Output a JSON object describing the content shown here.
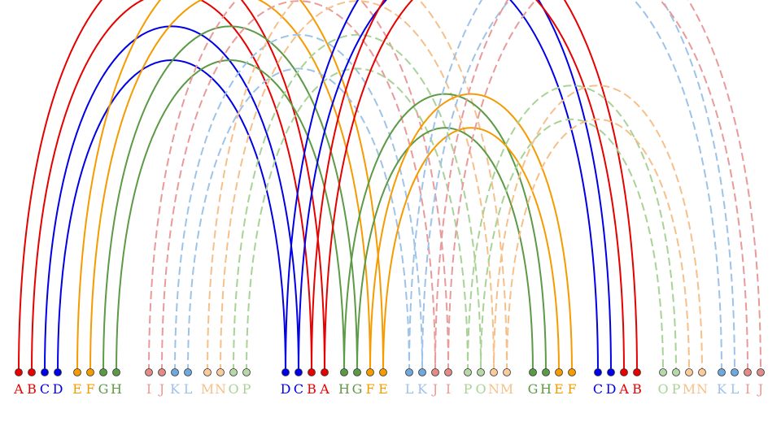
{
  "colors": {
    "red": "#e60000",
    "blue": "#0000e6",
    "orange": "#f59b00",
    "green": "#5c9a46",
    "pink": "#e99a9a",
    "lightblue": "#9ec3e8",
    "peach": "#f6c08a",
    "lightgreen": "#a9d396",
    "node_pink": "#e08b8b",
    "node_lightblue": "#6fa8dc",
    "node_peach": "#f9cb9c",
    "node_lightgreen": "#b6d7a8"
  },
  "nodes": [
    {
      "label": "A",
      "color": "red"
    },
    {
      "label": "B",
      "color": "red"
    },
    {
      "label": "C",
      "color": "blue"
    },
    {
      "label": "D",
      "color": "blue"
    },
    {
      "label": "E",
      "color": "orange"
    },
    {
      "label": "F",
      "color": "orange"
    },
    {
      "label": "G",
      "color": "green"
    },
    {
      "label": "H",
      "color": "green"
    },
    {
      "label": "I",
      "color": "pink"
    },
    {
      "label": "J",
      "color": "pink"
    },
    {
      "label": "K",
      "color": "lightblue"
    },
    {
      "label": "L",
      "color": "lightblue"
    },
    {
      "label": "M",
      "color": "peach"
    },
    {
      "label": "N",
      "color": "peach"
    },
    {
      "label": "O",
      "color": "lightgreen"
    },
    {
      "label": "P",
      "color": "lightgreen"
    },
    {
      "label": "D",
      "color": "blue"
    },
    {
      "label": "C",
      "color": "blue"
    },
    {
      "label": "B",
      "color": "red"
    },
    {
      "label": "A",
      "color": "red"
    },
    {
      "label": "H",
      "color": "green"
    },
    {
      "label": "G",
      "color": "green"
    },
    {
      "label": "F",
      "color": "orange"
    },
    {
      "label": "E",
      "color": "orange"
    },
    {
      "label": "L",
      "color": "lightblue"
    },
    {
      "label": "K",
      "color": "lightblue"
    },
    {
      "label": "J",
      "color": "pink"
    },
    {
      "label": "I",
      "color": "pink"
    },
    {
      "label": "P",
      "color": "lightgreen"
    },
    {
      "label": "O",
      "color": "lightgreen"
    },
    {
      "label": "N",
      "color": "peach"
    },
    {
      "label": "M",
      "color": "peach"
    },
    {
      "label": "G",
      "color": "green"
    },
    {
      "label": "H",
      "color": "green"
    },
    {
      "label": "E",
      "color": "orange"
    },
    {
      "label": "F",
      "color": "orange"
    },
    {
      "label": "C",
      "color": "blue"
    },
    {
      "label": "D",
      "color": "blue"
    },
    {
      "label": "A",
      "color": "red"
    },
    {
      "label": "B",
      "color": "red"
    },
    {
      "label": "O",
      "color": "lightgreen"
    },
    {
      "label": "P",
      "color": "lightgreen"
    },
    {
      "label": "M",
      "color": "peach"
    },
    {
      "label": "N",
      "color": "peach"
    },
    {
      "label": "K",
      "color": "lightblue"
    },
    {
      "label": "L",
      "color": "lightblue"
    },
    {
      "label": "I",
      "color": "pink"
    },
    {
      "label": "J",
      "color": "pink"
    }
  ],
  "arcs": [
    {
      "from": 0,
      "to": 19,
      "color": "red",
      "dashed": false
    },
    {
      "from": 1,
      "to": 18,
      "color": "red",
      "dashed": false
    },
    {
      "from": 2,
      "to": 17,
      "color": "blue",
      "dashed": false
    },
    {
      "from": 3,
      "to": 16,
      "color": "blue",
      "dashed": false
    },
    {
      "from": 4,
      "to": 23,
      "color": "orange",
      "dashed": false
    },
    {
      "from": 5,
      "to": 22,
      "color": "orange",
      "dashed": false
    },
    {
      "from": 6,
      "to": 21,
      "color": "green",
      "dashed": false
    },
    {
      "from": 7,
      "to": 20,
      "color": "green",
      "dashed": false
    },
    {
      "from": 8,
      "to": 27,
      "color": "pink",
      "dashed": true
    },
    {
      "from": 9,
      "to": 26,
      "color": "pink",
      "dashed": true
    },
    {
      "from": 10,
      "to": 25,
      "color": "lightblue",
      "dashed": true
    },
    {
      "from": 11,
      "to": 24,
      "color": "lightblue",
      "dashed": true
    },
    {
      "from": 12,
      "to": 31,
      "color": "peach",
      "dashed": true
    },
    {
      "from": 13,
      "to": 30,
      "color": "peach",
      "dashed": true
    },
    {
      "from": 14,
      "to": 29,
      "color": "lightgreen",
      "dashed": true
    },
    {
      "from": 15,
      "to": 28,
      "color": "lightgreen",
      "dashed": true
    },
    {
      "from": 16,
      "to": 37,
      "color": "blue",
      "dashed": false
    },
    {
      "from": 17,
      "to": 36,
      "color": "blue",
      "dashed": false
    },
    {
      "from": 18,
      "to": 39,
      "color": "red",
      "dashed": false
    },
    {
      "from": 19,
      "to": 38,
      "color": "red",
      "dashed": false
    },
    {
      "from": 20,
      "to": 33,
      "color": "green",
      "dashed": false
    },
    {
      "from": 21,
      "to": 32,
      "color": "green",
      "dashed": false
    },
    {
      "from": 22,
      "to": 35,
      "color": "orange",
      "dashed": false
    },
    {
      "from": 23,
      "to": 34,
      "color": "orange",
      "dashed": false
    },
    {
      "from": 24,
      "to": 45,
      "color": "lightblue",
      "dashed": true
    },
    {
      "from": 25,
      "to": 44,
      "color": "lightblue",
      "dashed": true
    },
    {
      "from": 26,
      "to": 47,
      "color": "pink",
      "dashed": true
    },
    {
      "from": 27,
      "to": 46,
      "color": "pink",
      "dashed": true
    },
    {
      "from": 28,
      "to": 41,
      "color": "lightgreen",
      "dashed": true
    },
    {
      "from": 29,
      "to": 40,
      "color": "lightgreen",
      "dashed": true
    },
    {
      "from": 30,
      "to": 43,
      "color": "peach",
      "dashed": true
    },
    {
      "from": 31,
      "to": 42,
      "color": "peach",
      "dashed": true
    }
  ]
}
